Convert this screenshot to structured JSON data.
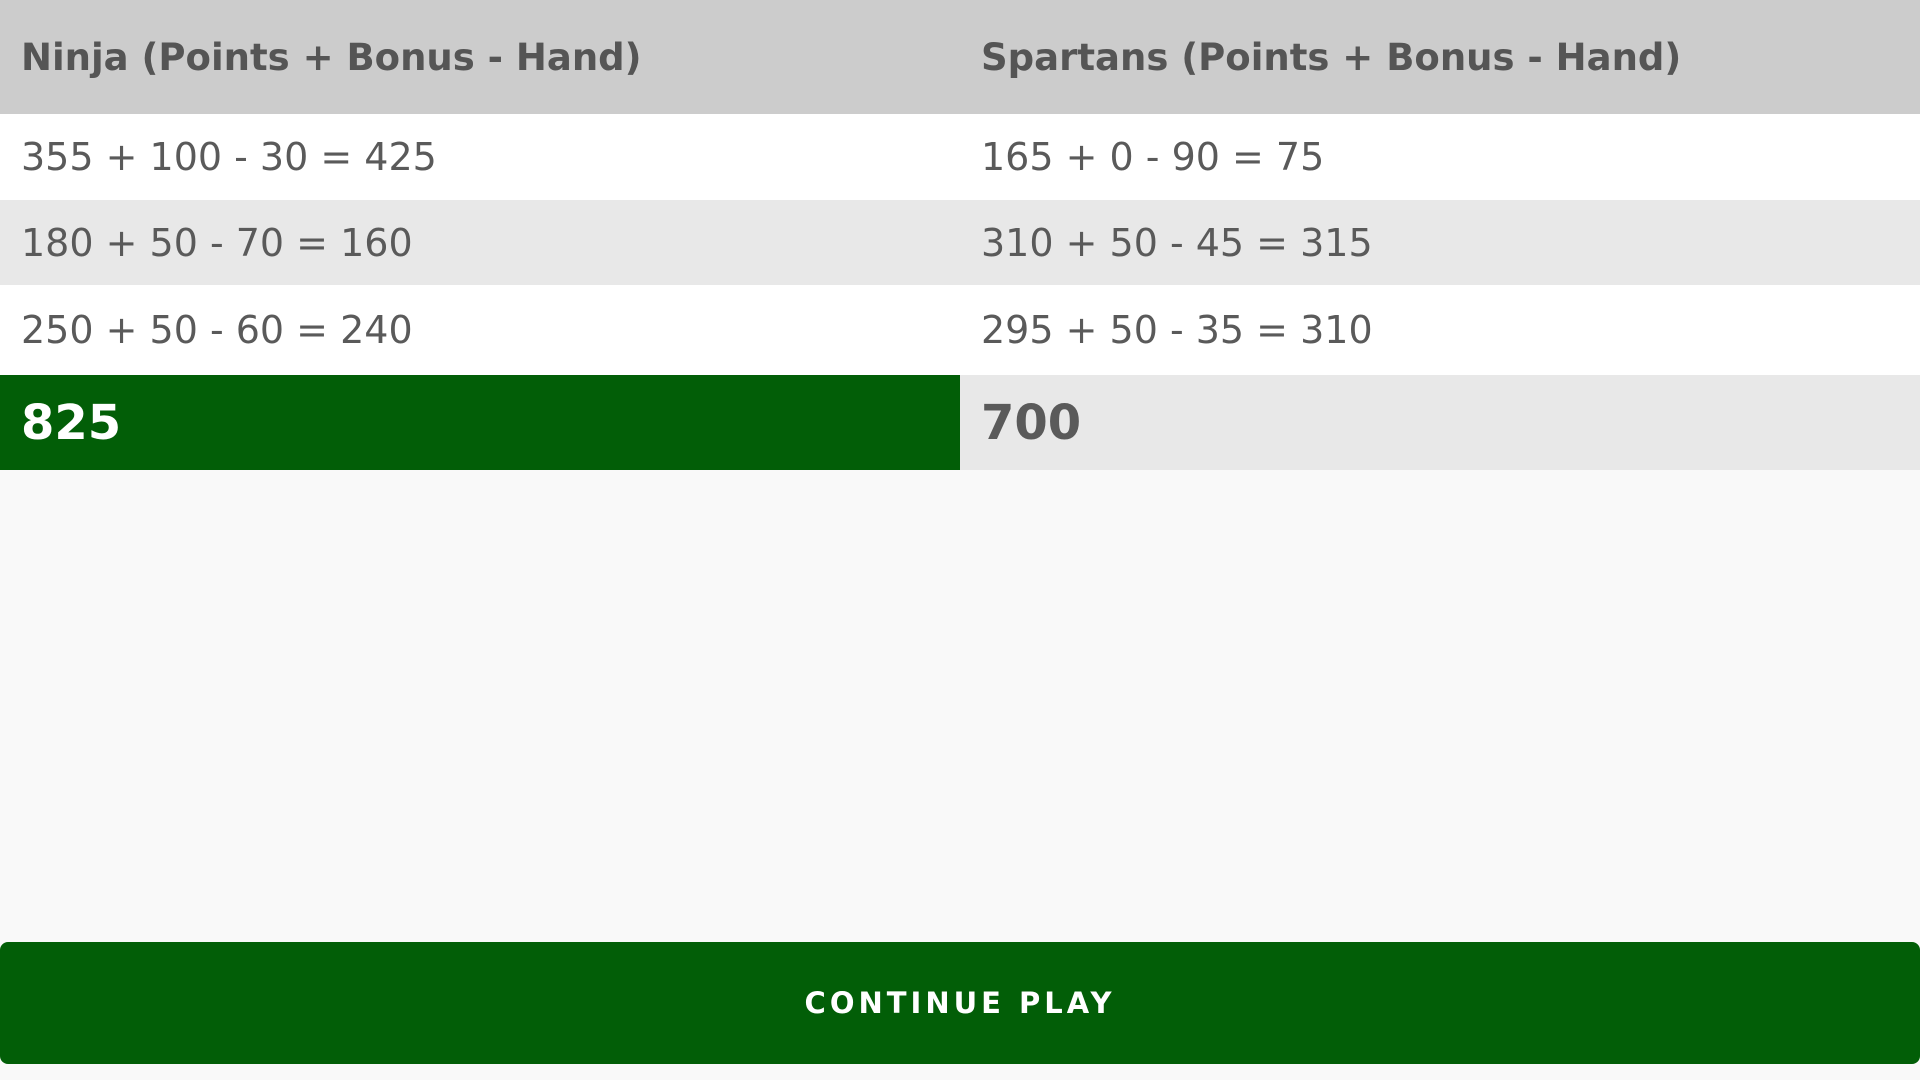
{
  "table": {
    "header": [
      "Ninja (Points + Bonus - Hand)",
      "Spartans (Points + Bonus - Hand)"
    ],
    "rows": [
      [
        "355 + 100 - 30 = 425",
        "165 + 0 - 90 = 75"
      ],
      [
        "180 + 50 - 70 = 160",
        "310 + 50 - 45 = 315"
      ],
      [
        "250 + 50 - 60 = 240",
        "295 + 50 - 35 = 310"
      ]
    ],
    "totals": [
      "825",
      "700"
    ]
  },
  "button": {
    "label": "CONTINUE PLAY"
  }
}
